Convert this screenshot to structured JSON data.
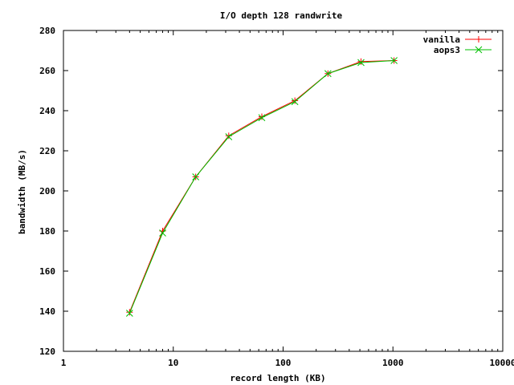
{
  "chart_data": {
    "type": "line",
    "title": "I/O depth 128 randwrite",
    "xlabel": "record length (KB)",
    "ylabel": "bandwidth (MB/s)",
    "x_scale": "log",
    "xlim": [
      1,
      10000
    ],
    "ylim": [
      120,
      280
    ],
    "x_ticks": [
      1,
      10,
      100,
      1000,
      10000
    ],
    "x_tick_labels": [
      "1",
      "10",
      "100",
      "1000",
      "10000"
    ],
    "y_ticks": [
      120,
      140,
      160,
      180,
      200,
      220,
      240,
      260,
      280
    ],
    "y_tick_labels": [
      "120",
      "140",
      "160",
      "180",
      "200",
      "220",
      "240",
      "260",
      "280"
    ],
    "legend_position": "top-right",
    "grid": false,
    "x": [
      4,
      8,
      16,
      32,
      64,
      128,
      256,
      512,
      1024
    ],
    "series": [
      {
        "name": "vanilla",
        "color": "#ff0000",
        "marker": "plus",
        "values": [
          139.5,
          180.0,
          207.0,
          227.5,
          237.0,
          245.0,
          258.5,
          264.5,
          265.0
        ]
      },
      {
        "name": "aops3",
        "color": "#00c000",
        "marker": "cross",
        "values": [
          139.0,
          179.0,
          207.0,
          227.0,
          236.5,
          244.5,
          258.5,
          264.0,
          265.0
        ]
      }
    ]
  }
}
